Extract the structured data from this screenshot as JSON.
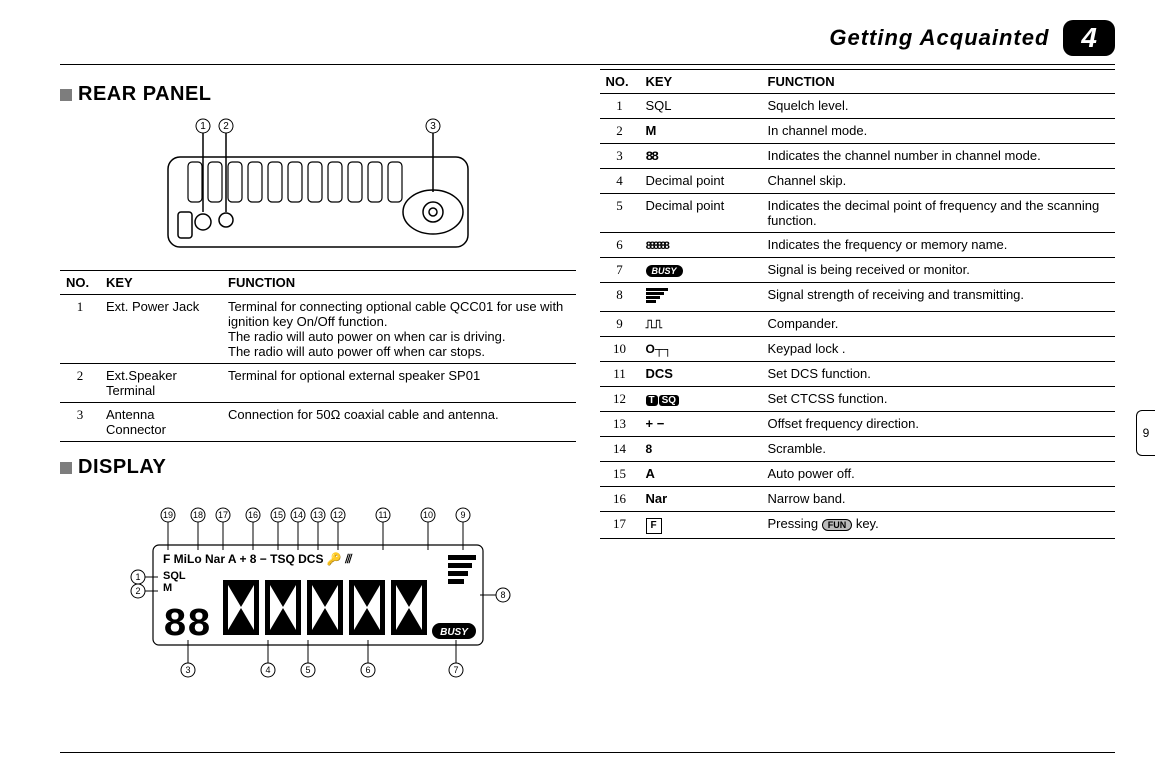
{
  "header": {
    "section": "Getting Acquainted",
    "chapter": "4",
    "page_tab": "9"
  },
  "rear_panel": {
    "title": "REAR PANEL",
    "callouts": [
      "1",
      "2",
      "3"
    ],
    "table": {
      "headers": [
        "NO.",
        "KEY",
        "FUNCTION"
      ],
      "rows": [
        {
          "no": "1",
          "key": "Ext. Power Jack",
          "func": "Terminal for connecting optional cable QCC01 for use with ignition key On/Off function.\nThe radio will auto power on when car is driving.\nThe radio will auto power off when car stops."
        },
        {
          "no": "2",
          "key": "Ext.Speaker Terminal",
          "func": "Terminal for optional external speaker  SP01"
        },
        {
          "no": "3",
          "key": "Antenna Connector",
          "func": "Connection for 50Ω coaxial cable and antenna."
        }
      ]
    }
  },
  "display": {
    "title": "DISPLAY",
    "top_callouts": [
      "19",
      "18",
      "17",
      "16",
      "15",
      "14",
      "13",
      "12",
      "11",
      "10",
      "9"
    ],
    "left_callouts": [
      "1",
      "2"
    ],
    "right_callouts": [
      "8"
    ],
    "bottom_callouts": [
      "3",
      "4",
      "5",
      "6",
      "7"
    ],
    "lcd_top_row": "F MiLo Nar A + − T SQ DCS ⚿ ⫻",
    "lcd_sql": "SQL",
    "lcd_m": "M",
    "lcd_88": "88",
    "lcd_busy": "BUSY"
  },
  "display_table": {
    "headers": [
      "NO.",
      "KEY",
      "FUNCTION"
    ],
    "rows": [
      {
        "no": "1",
        "key": "SQL",
        "func": "Squelch level."
      },
      {
        "no": "2",
        "key": "M",
        "key_bold": true,
        "func": "In channel mode."
      },
      {
        "no": "3",
        "key_type": "seg88",
        "func": "Indicates the channel number in channel mode."
      },
      {
        "no": "4",
        "key": "Decimal point",
        "func": "Channel skip."
      },
      {
        "no": "5",
        "key": "Decimal point",
        "func": "Indicates the decimal point of frequency and the scanning function."
      },
      {
        "no": "6",
        "key_type": "segmulti",
        "func": "Indicates the frequency or memory name."
      },
      {
        "no": "7",
        "key_type": "busy",
        "func": "Signal is being received or monitor."
      },
      {
        "no": "8",
        "key_type": "bars",
        "func": "Signal strength of receiving and transmitting."
      },
      {
        "no": "9",
        "key_type": "pulse",
        "func": "Compander."
      },
      {
        "no": "10",
        "key_type": "lock",
        "func": "Keypad lock ."
      },
      {
        "no": "11",
        "key": "DCS",
        "key_bold": true,
        "func": "Set DCS function."
      },
      {
        "no": "12",
        "key_type": "tsq",
        "func": "Set CTCSS function."
      },
      {
        "no": "13",
        "key": "+ −",
        "key_bold": true,
        "func": "Offset frequency direction."
      },
      {
        "no": "14",
        "key_type": "scramble",
        "func": "Scramble."
      },
      {
        "no": "15",
        "key": "A",
        "key_bold": true,
        "func": "Auto power off."
      },
      {
        "no": "16",
        "key": "Nar",
        "key_bold": true,
        "func": "Narrow band."
      },
      {
        "no": "17",
        "key_type": "fkey",
        "func_pre": "Pressing ",
        "func_post": " key.",
        "fun_label": "FUN"
      }
    ]
  }
}
